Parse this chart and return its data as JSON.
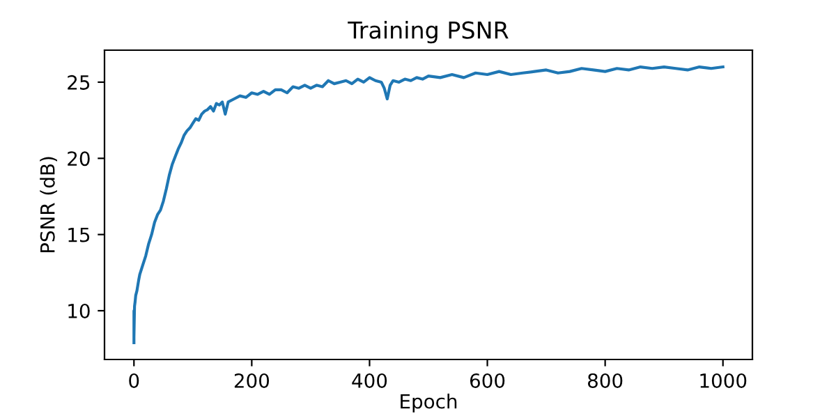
{
  "chart_data": {
    "type": "line",
    "title": "Training PSNR",
    "xlabel": "Epoch",
    "ylabel": "PSNR (dB)",
    "xlim": [
      -50,
      1050
    ],
    "ylim": [
      6.8,
      27.1
    ],
    "xticks": [
      0,
      200,
      400,
      600,
      800,
      1000
    ],
    "yticks": [
      10,
      15,
      20,
      25
    ],
    "grid": false,
    "series": [
      {
        "color": "#1f77b4",
        "x": [
          0,
          0,
          0,
          1,
          2,
          3,
          5,
          8,
          10,
          15,
          20,
          25,
          30,
          35,
          40,
          45,
          50,
          55,
          60,
          65,
          70,
          75,
          80,
          85,
          90,
          95,
          100,
          105,
          110,
          115,
          120,
          125,
          130,
          135,
          140,
          145,
          150,
          155,
          160,
          170,
          180,
          190,
          200,
          210,
          220,
          230,
          240,
          250,
          260,
          270,
          280,
          290,
          300,
          310,
          320,
          330,
          340,
          350,
          360,
          370,
          380,
          390,
          400,
          410,
          420,
          425,
          430,
          435,
          440,
          450,
          460,
          470,
          480,
          490,
          500,
          520,
          540,
          560,
          580,
          600,
          620,
          640,
          660,
          680,
          700,
          720,
          740,
          760,
          780,
          800,
          820,
          840,
          860,
          880,
          900,
          920,
          940,
          960,
          980,
          1000
        ],
        "values": [
          7.9,
          10.0,
          8.3,
          10.3,
          10.6,
          11.0,
          11.3,
          12.0,
          12.4,
          13.0,
          13.6,
          14.4,
          15.0,
          15.8,
          16.3,
          16.6,
          17.2,
          18.0,
          18.9,
          19.6,
          20.1,
          20.6,
          21.0,
          21.5,
          21.8,
          22.0,
          22.3,
          22.6,
          22.5,
          22.9,
          23.1,
          23.2,
          23.4,
          23.1,
          23.6,
          23.5,
          23.7,
          22.9,
          23.7,
          23.9,
          24.1,
          24.0,
          24.3,
          24.2,
          24.4,
          24.2,
          24.5,
          24.5,
          24.3,
          24.7,
          24.6,
          24.8,
          24.6,
          24.8,
          24.7,
          25.1,
          24.9,
          25.0,
          25.1,
          24.9,
          25.2,
          25.0,
          25.3,
          25.1,
          25.0,
          24.6,
          23.9,
          24.8,
          25.1,
          25.0,
          25.2,
          25.1,
          25.3,
          25.2,
          25.4,
          25.3,
          25.5,
          25.3,
          25.6,
          25.5,
          25.7,
          25.5,
          25.6,
          25.7,
          25.8,
          25.6,
          25.7,
          25.9,
          25.8,
          25.7,
          25.9,
          25.8,
          26.0,
          25.9,
          26.0,
          25.9,
          25.8,
          26.0,
          25.9,
          26.0
        ]
      }
    ]
  }
}
